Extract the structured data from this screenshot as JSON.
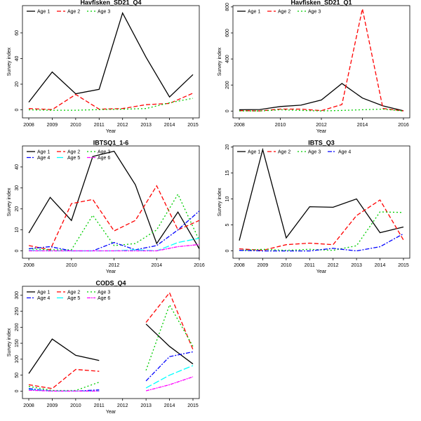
{
  "colors": {
    "Age 1": "#000000",
    "Age 2": "#ff0000",
    "Age 3": "#00cd00",
    "Age 4": "#0000ff",
    "Age 5": "#00ffff",
    "Age 6": "#ff00ff"
  },
  "dash_patterns": {
    "Age 1": "",
    "Age 2": "6,3",
    "Age 3": "2,3",
    "Age 4": "6,2,2,2",
    "Age 5": "9,3",
    "Age 6": "5,1,2,1"
  },
  "chart_data": [
    {
      "type": "line",
      "title": "Havfisken_SD21_Q4",
      "xlabel": "Year",
      "ylabel": "Survey index",
      "xlim": [
        2008,
        2015
      ],
      "ylim": [
        -3,
        78
      ],
      "xticks": [
        2008,
        2009,
        2010,
        2011,
        2012,
        2013,
        2014,
        2015
      ],
      "yticks": [
        0,
        20,
        40,
        60
      ],
      "legend": {
        "position": "top-left",
        "ncol": 3
      },
      "x": [
        2008,
        2009,
        2010,
        2011,
        2012,
        2013,
        2014,
        2015
      ],
      "series": [
        {
          "name": "Age 1",
          "values": [
            6,
            29.5,
            12.5,
            16,
            75.5,
            41,
            10,
            27.5
          ]
        },
        {
          "name": "Age 2",
          "values": [
            1,
            0.2,
            12,
            0.5,
            1,
            4,
            5,
            13
          ]
        },
        {
          "name": "Age 3",
          "values": [
            0,
            -0.3,
            -0.3,
            0.2,
            0.5,
            1,
            5.5,
            9
          ]
        }
      ]
    },
    {
      "type": "line",
      "title": "Havfisken_SD21_Q1",
      "xlabel": "Year",
      "ylabel": "Survey index",
      "xlim": [
        2008,
        2016
      ],
      "ylim": [
        -20,
        810
      ],
      "xticks": [
        2008,
        2010,
        2012,
        2014,
        2016
      ],
      "yticks": [
        0,
        200,
        400,
        600,
        800
      ],
      "legend": {
        "position": "top-left",
        "ncol": 3
      },
      "x": [
        2008,
        2009,
        2010,
        2011,
        2012,
        2013,
        2014,
        2015,
        2016
      ],
      "series": [
        {
          "name": "Age 1",
          "values": [
            10,
            12,
            35,
            45,
            85,
            212,
            100,
            40,
            2
          ]
        },
        {
          "name": "Age 2",
          "values": [
            3,
            1,
            15,
            15,
            3,
            50,
            785,
            20,
            1
          ]
        },
        {
          "name": "Age 3",
          "values": [
            1,
            0.5,
            10,
            5,
            1,
            5,
            10,
            15,
            0
          ]
        }
      ]
    },
    {
      "type": "line",
      "title": "IBTSQ1_1-6",
      "xlabel": "Year",
      "ylabel": "Survey index",
      "xlim": [
        2007.7,
        2016
      ],
      "ylim": [
        -1.5,
        48
      ],
      "xticks": [
        2008,
        2010,
        2012,
        2014,
        2016
      ],
      "yticks": [
        0,
        10,
        20,
        30,
        40
      ],
      "legend": {
        "position": "top-left",
        "ncol": 3
      },
      "x": [
        2008,
        2009,
        2010,
        2011,
        2012,
        2013,
        2014,
        2015,
        2016
      ],
      "series": [
        {
          "name": "Age 1",
          "values": [
            8.5,
            25.5,
            14.5,
            45,
            47.5,
            31.5,
            3.5,
            18.5,
            1
          ]
        },
        {
          "name": "Age 2",
          "values": [
            2.5,
            0.5,
            22.5,
            24.5,
            9.5,
            14.5,
            31,
            10,
            14.5
          ]
        },
        {
          "name": "Age 3",
          "values": [
            1,
            0.5,
            0.5,
            17,
            2.5,
            3.5,
            10,
            27,
            5
          ]
        },
        {
          "name": "Age 4",
          "values": [
            1,
            2,
            0,
            0,
            4,
            0.5,
            2.5,
            10,
            19
          ]
        },
        {
          "name": "Age 5",
          "values": [
            0.2,
            0,
            0,
            0,
            0,
            0.5,
            0,
            4,
            6
          ]
        },
        {
          "name": "Age 6",
          "values": [
            0,
            0,
            0,
            0,
            0,
            0,
            0,
            2,
            3
          ]
        }
      ]
    },
    {
      "type": "line",
      "title": "IBTS_Q3",
      "xlabel": "Year",
      "ylabel": "Survey index",
      "xlim": [
        2008,
        2015
      ],
      "ylim": [
        -0.6,
        20.2
      ],
      "xticks": [
        2008,
        2009,
        2010,
        2011,
        2012,
        2013,
        2014,
        2015
      ],
      "yticks": [
        0,
        5,
        10,
        15,
        20
      ],
      "legend": {
        "position": "top-left",
        "ncol": 4
      },
      "x": [
        2008,
        2009,
        2010,
        2011,
        2012,
        2013,
        2014,
        2015
      ],
      "series": [
        {
          "name": "Age 1",
          "values": [
            2,
            19.5,
            2.5,
            8.5,
            8.4,
            10,
            3.5,
            4.6
          ]
        },
        {
          "name": "Age 2",
          "values": [
            0.4,
            0.1,
            1.2,
            1.5,
            1.2,
            6.8,
            9.8,
            2.1
          ]
        },
        {
          "name": "Age 3",
          "values": [
            0.1,
            0.3,
            0.1,
            0.3,
            0.1,
            1,
            7.5,
            7.4
          ]
        },
        {
          "name": "Age 4",
          "values": [
            0.1,
            0,
            0,
            0,
            0.5,
            0,
            0.8,
            3.3
          ]
        }
      ]
    },
    {
      "type": "line",
      "title": "CODS_Q4",
      "xlabel": "Year",
      "ylabel": "Survey index",
      "xlim": [
        2008,
        2015
      ],
      "ylim": [
        -10,
        315
      ],
      "xticks": [
        2008,
        2009,
        2010,
        2011,
        2012,
        2013,
        2014,
        2015
      ],
      "yticks": [
        0,
        50,
        100,
        150,
        200,
        250,
        300
      ],
      "legend": {
        "position": "top-left",
        "ncol": 3
      },
      "x": [
        2008,
        2009,
        2010,
        2011,
        2012,
        2013,
        2014,
        2015
      ],
      "series": [
        {
          "name": "Age 1",
          "values": [
            55,
            163,
            112,
            96,
            null,
            210,
            140,
            85
          ]
        },
        {
          "name": "Age 2",
          "values": [
            20,
            8,
            68,
            62,
            null,
            215,
            308,
            130
          ]
        },
        {
          "name": "Age 3",
          "values": [
            15,
            2,
            2,
            28,
            null,
            65,
            270,
            140
          ]
        },
        {
          "name": "Age 4",
          "values": [
            8,
            0,
            0,
            4,
            null,
            32,
            108,
            123
          ]
        },
        {
          "name": "Age 5",
          "values": [
            5,
            0,
            0,
            0,
            null,
            10,
            50,
            80
          ]
        },
        {
          "name": "Age 6",
          "values": [
            3,
            0,
            0,
            0,
            null,
            1,
            20,
            45
          ]
        }
      ]
    }
  ]
}
